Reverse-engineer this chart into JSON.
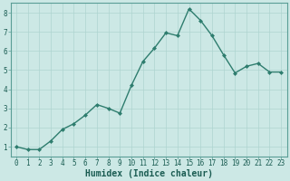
{
  "x": [
    0,
    1,
    2,
    3,
    4,
    5,
    6,
    7,
    8,
    9,
    10,
    11,
    12,
    13,
    14,
    15,
    16,
    17,
    18,
    19,
    20,
    21,
    22,
    23
  ],
  "y": [
    1.0,
    0.85,
    0.85,
    1.3,
    1.9,
    2.2,
    2.65,
    3.2,
    3.0,
    2.75,
    4.2,
    5.45,
    6.15,
    6.95,
    6.8,
    8.2,
    7.6,
    6.8,
    5.8,
    4.85,
    5.2,
    5.35,
    4.9,
    4.9
  ],
  "line_color": "#2e7d6e",
  "marker": "D",
  "marker_size": 2.0,
  "bg_color": "#cce8e5",
  "grid_color": "#aed4d0",
  "xlabel": "Humidex (Indice chaleur)",
  "xlim": [
    -0.5,
    23.5
  ],
  "ylim": [
    0.5,
    8.5
  ],
  "yticks": [
    1,
    2,
    3,
    4,
    5,
    6,
    7,
    8
  ],
  "xticks": [
    0,
    1,
    2,
    3,
    4,
    5,
    6,
    7,
    8,
    9,
    10,
    11,
    12,
    13,
    14,
    15,
    16,
    17,
    18,
    19,
    20,
    21,
    22,
    23
  ],
  "tick_fontsize": 5.5,
  "xlabel_fontsize": 7.0,
  "line_width": 1.0
}
